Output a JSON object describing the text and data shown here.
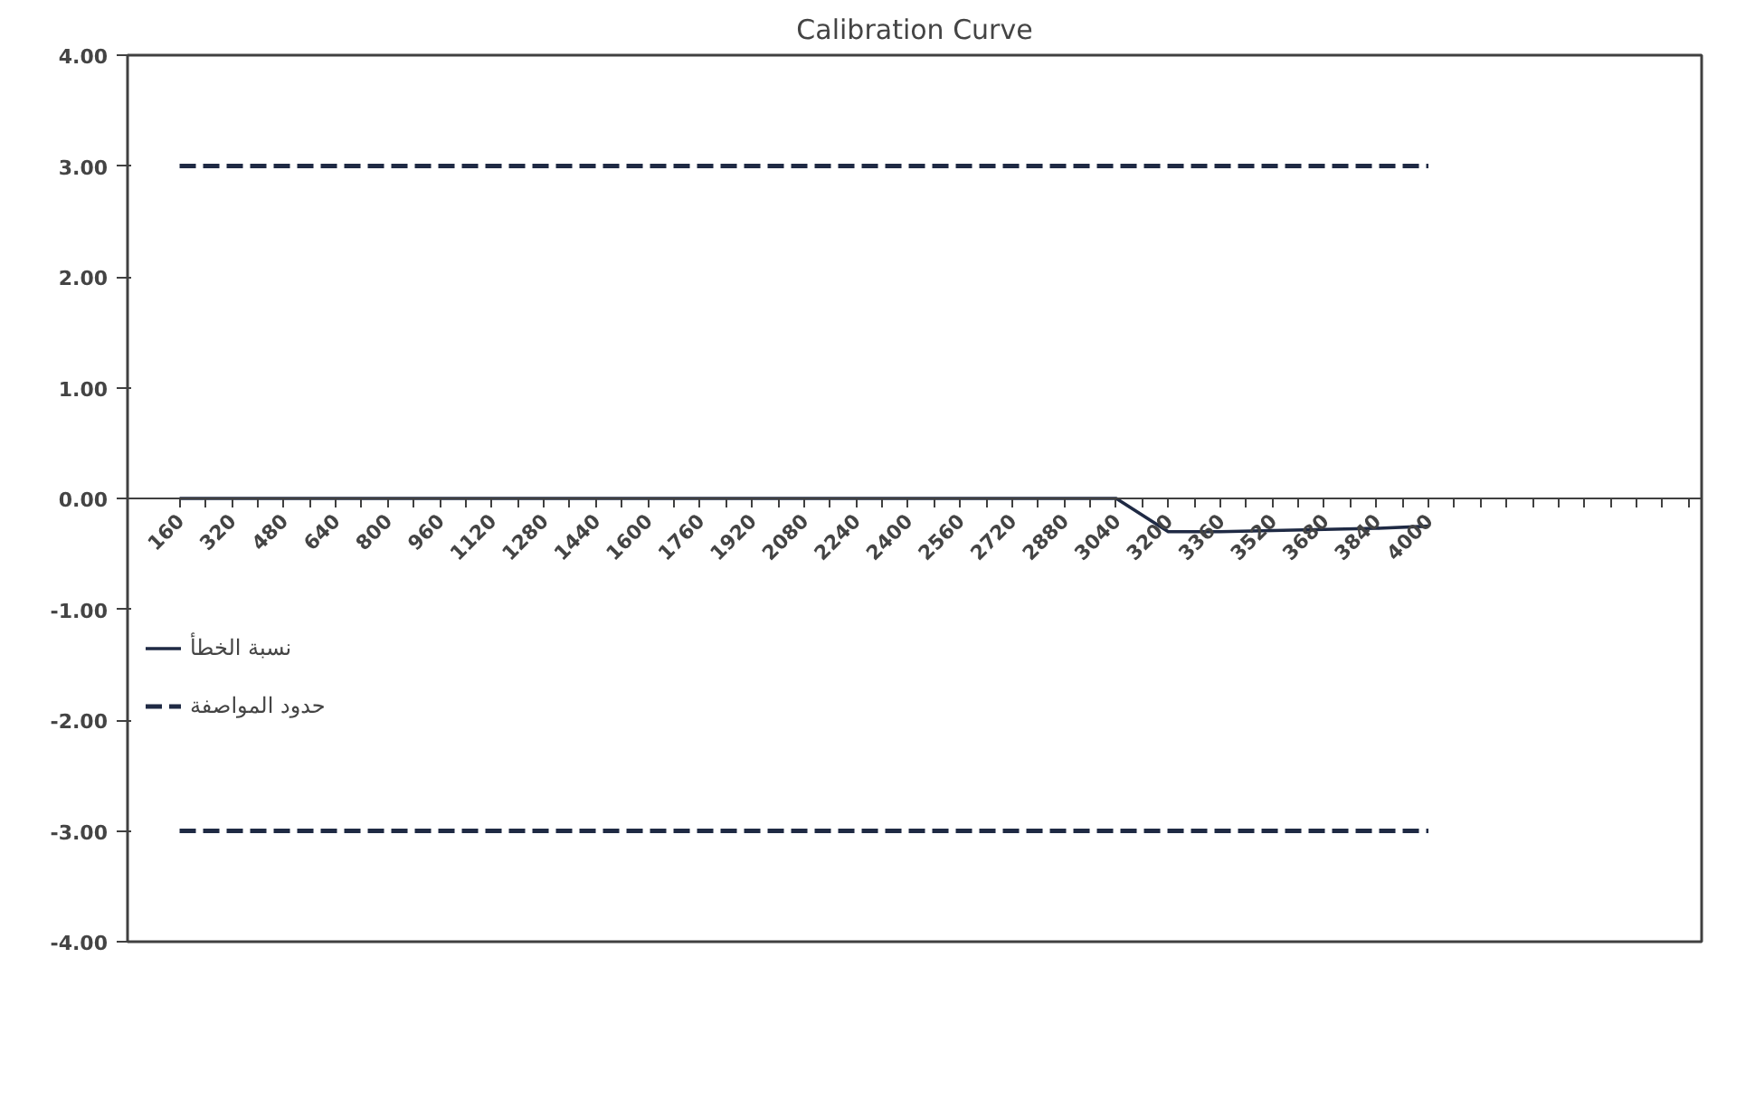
{
  "chart_data": {
    "type": "line",
    "title": "Calibration Curve",
    "x": [
      160,
      320,
      480,
      640,
      800,
      960,
      1120,
      1280,
      1440,
      1600,
      1760,
      1920,
      2080,
      2240,
      2400,
      2560,
      2720,
      2880,
      3040,
      3200,
      3360,
      3520,
      3680,
      3840,
      4000
    ],
    "series": [
      {
        "name": "نسبة الخطأ",
        "color": "#1f2a44",
        "line_style": "solid",
        "values": [
          0,
          0,
          0,
          0,
          0,
          0,
          0,
          0,
          0,
          0,
          0,
          0,
          0,
          0,
          0,
          0,
          0,
          0,
          0,
          -0.3,
          -0.3,
          -0.29,
          -0.28,
          -0.27,
          -0.25
        ]
      },
      {
        "name": "حدود المواصفة",
        "color": "#1f2a44",
        "line_style": "dashed",
        "values": [
          3,
          3,
          3,
          3,
          3,
          3,
          3,
          3,
          3,
          3,
          3,
          3,
          3,
          3,
          3,
          3,
          3,
          3,
          3,
          3,
          3,
          3,
          3,
          3,
          3
        ]
      },
      {
        "color": "#1f2a44",
        "line_style": "dashed",
        "values": [
          -3,
          -3,
          -3,
          -3,
          -3,
          -3,
          -3,
          -3,
          -3,
          -3,
          -3,
          -3,
          -3,
          -3,
          -3,
          -3,
          -3,
          -3,
          -3,
          -3,
          -3,
          -3,
          -3,
          -3,
          -3
        ]
      }
    ],
    "xlim": [
      0,
      4840
    ],
    "xticks": [
      160,
      {
        "value": 240,
        "label": null
      },
      320,
      {
        "value": 400,
        "label": null
      },
      480,
      {
        "value": 560,
        "label": null
      },
      640,
      {
        "value": 720,
        "label": null
      },
      800,
      {
        "value": 880,
        "label": null
      },
      960,
      {
        "value": 1040,
        "label": null
      },
      1120,
      {
        "value": 1200,
        "label": null
      },
      1280,
      {
        "value": 1360,
        "label": null
      },
      1440,
      {
        "value": 1520,
        "label": null
      },
      1600,
      {
        "value": 1680,
        "label": null
      },
      1760,
      {
        "value": 1840,
        "label": null
      },
      1920,
      {
        "value": 2000,
        "label": null
      },
      2080,
      {
        "value": 2160,
        "label": null
      },
      2240,
      {
        "value": 2320,
        "label": null
      },
      2400,
      {
        "value": 2480,
        "label": null
      },
      2560,
      {
        "value": 2640,
        "label": null
      },
      2720,
      {
        "value": 2800,
        "label": null
      },
      2880,
      {
        "value": 2960,
        "label": null
      },
      3040,
      {
        "value": 3120,
        "label": null
      },
      3200,
      {
        "value": 3280,
        "label": null
      },
      3360,
      {
        "value": 3440,
        "label": null
      },
      3520,
      {
        "value": 3600,
        "label": null
      },
      3680,
      {
        "value": 3760,
        "label": null
      },
      3840,
      {
        "value": 3920,
        "label": null
      },
      4000,
      {
        "value": 4080,
        "label": null
      },
      {
        "value": 4160,
        "label": null
      },
      {
        "value": 4240,
        "label": null
      },
      {
        "value": 4320,
        "label": null
      },
      {
        "value": 4400,
        "label": null
      },
      {
        "value": 4480,
        "label": null
      },
      {
        "value": 4560,
        "label": null
      },
      {
        "value": 4640,
        "label": null
      },
      {
        "value": 4720,
        "label": null
      },
      {
        "value": 4800,
        "label": null
      }
    ],
    "ylim": [
      -4,
      4
    ],
    "yticks": [
      {
        "value": 4,
        "label": "4.00"
      },
      {
        "value": 3,
        "label": "3.00"
      },
      {
        "value": 2,
        "label": "2.00"
      },
      {
        "value": 1,
        "label": "1.00"
      },
      {
        "value": 0,
        "label": "0.00"
      },
      {
        "value": -1,
        "label": "-1.00"
      },
      {
        "value": -2,
        "label": "-2.00"
      },
      {
        "value": -3,
        "label": "-3.00"
      },
      {
        "value": -4,
        "label": "-4.00"
      }
    ],
    "legend": "left",
    "grid": false,
    "marker": "none"
  }
}
